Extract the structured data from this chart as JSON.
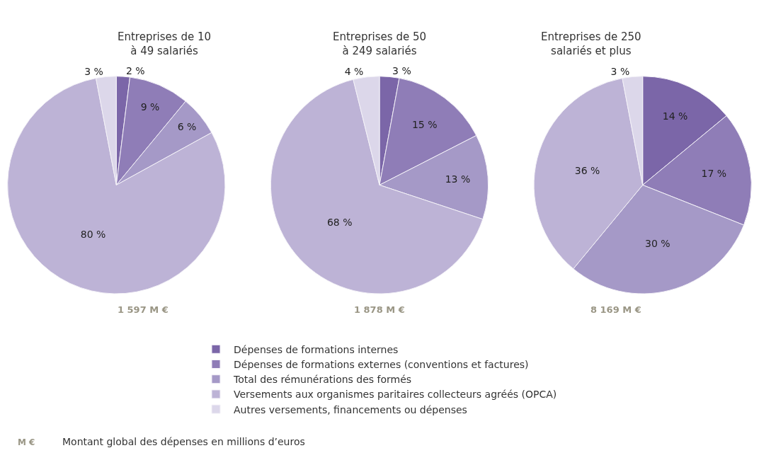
{
  "chart_data": [
    {
      "type": "pie",
      "title": "Entreprises de 10\nà 49 salariés",
      "categories": [
        "Dépenses de formations internes",
        "Dépenses de formations externes (conventions et factures)",
        "Total des rémunérations des formés",
        "Versements aux organismes paritaires collecteurs agréés (OPCA)",
        "Autres versements, financements ou dépenses"
      ],
      "values": [
        2,
        9,
        6,
        80,
        3
      ],
      "value_labels": [
        "2 %",
        "9 %",
        "6 %",
        "80 %",
        "3 %"
      ],
      "colors": [
        "#7b66a8",
        "#8f7db7",
        "#a599c7",
        "#bdb3d6",
        "#dcd7ea"
      ],
      "legend": "bottom",
      "annotations": [
        "1 597 M €",
        "M €",
        "Montant global des dépenses en millions d’euros"
      ]
    },
    {
      "type": "pie",
      "title": "Entreprises de 50\nà 249 salariés",
      "categories": [
        null,
        null,
        null,
        null,
        null
      ],
      "values": [
        3,
        15,
        13,
        68,
        4
      ],
      "value_labels": [
        "3 %",
        "15 %",
        "13 %",
        "68 %",
        "4 %"
      ],
      "colors": [
        "#7b66a8",
        "#8f7db7",
        "#a599c7",
        "#bdb3d6",
        "#dcd7ea"
      ],
      "annotations": [
        "1 878 M €"
      ]
    },
    {
      "type": "pie",
      "title": "Entreprises de 250\nsalariés et plus",
      "categories": [
        null,
        null,
        null,
        null,
        null
      ],
      "values": [
        14,
        17,
        30,
        36,
        3
      ],
      "value_labels": [
        "14 %",
        "17 %",
        "30 %",
        "36 %",
        "3 %"
      ],
      "colors": [
        "#7b66a8",
        "#8f7db7",
        "#a599c7",
        "#bdb3d6",
        "#dcd7ea"
      ],
      "annotations": [
        "8 169 M €"
      ]
    }
  ]
}
